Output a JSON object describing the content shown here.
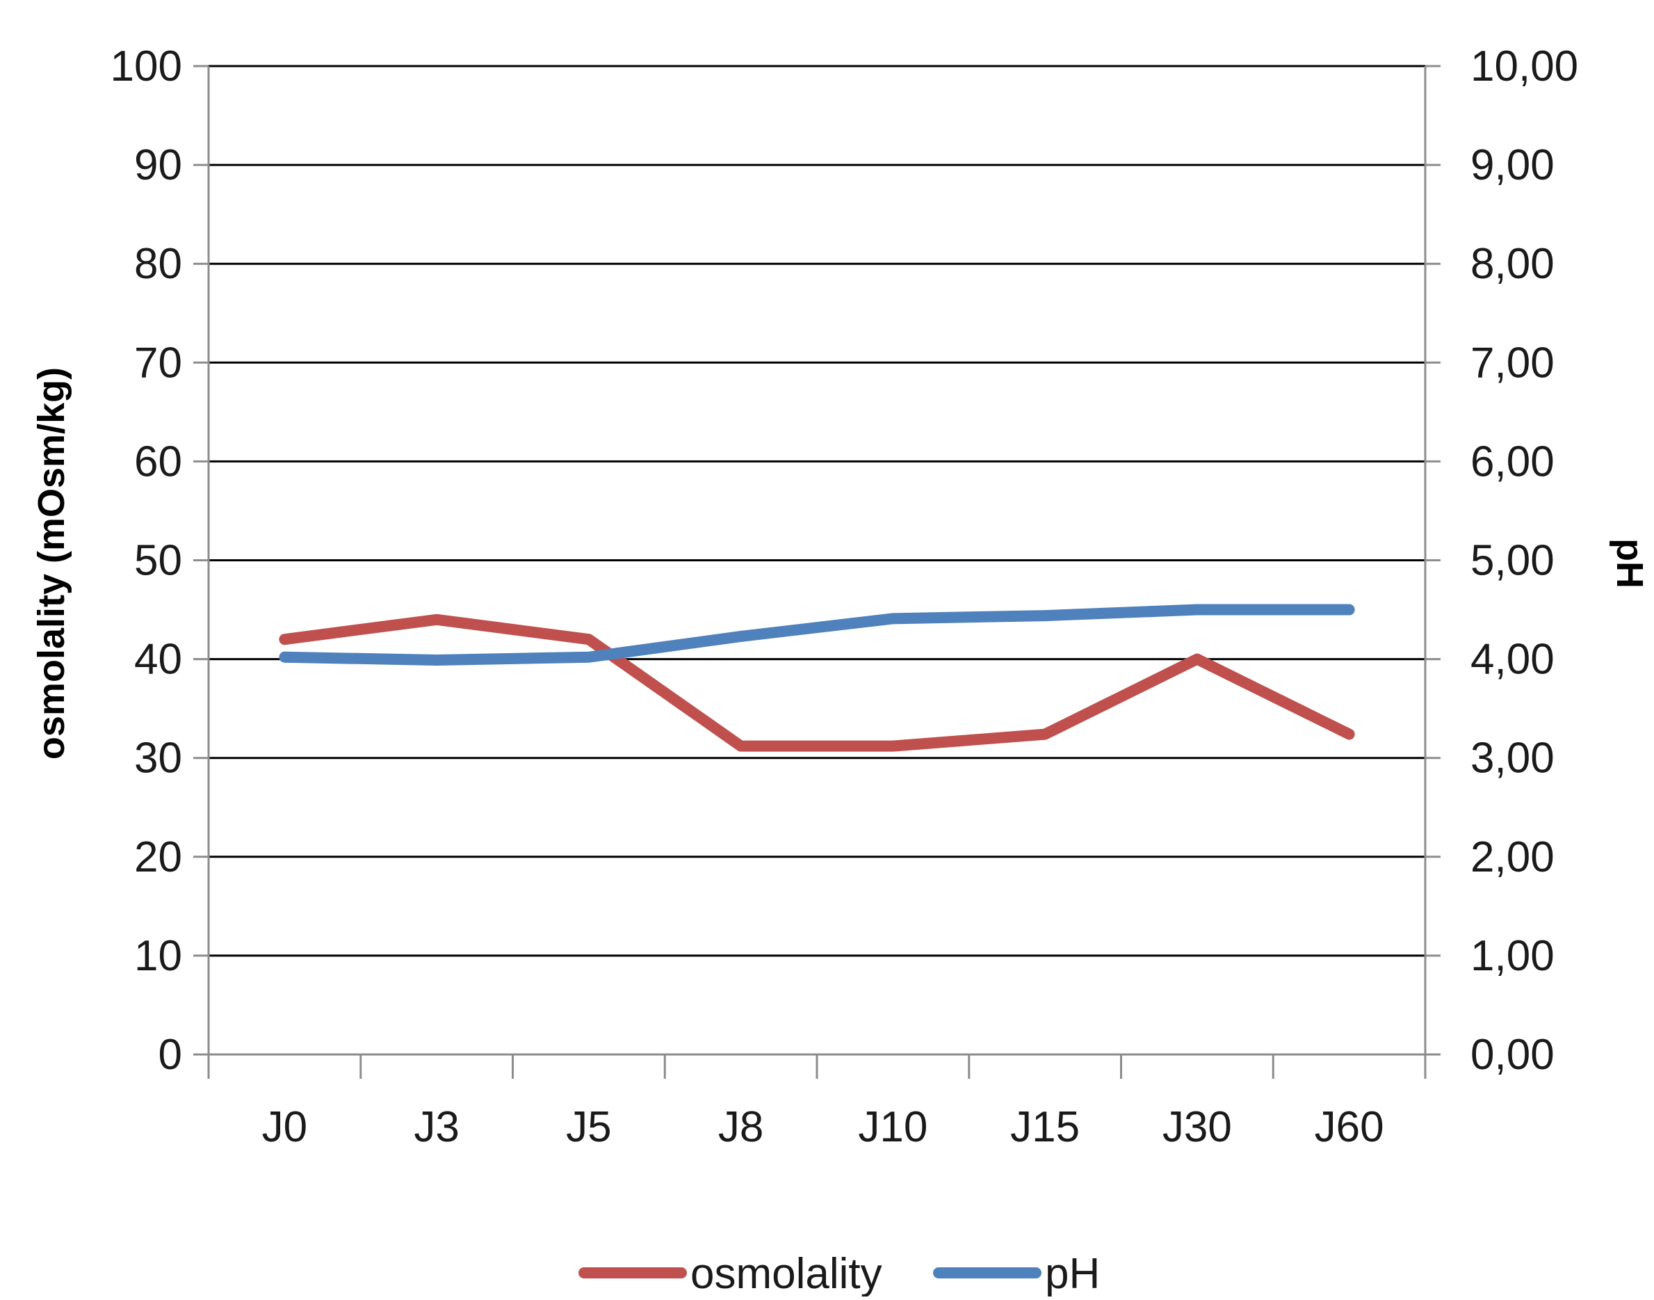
{
  "chart_data": {
    "type": "line",
    "categories": [
      "J0",
      "J3",
      "J5",
      "J8",
      "J10",
      "J15",
      "J30",
      "J60"
    ],
    "series": [
      {
        "name": "osmolality",
        "axis": "left",
        "color": "#C0504D",
        "values": [
          42,
          44,
          42,
          31.2,
          31.2,
          32.4,
          40,
          32.4
        ]
      },
      {
        "name": "pH",
        "axis": "right",
        "color": "#4F81BD",
        "values": [
          4.02,
          3.99,
          4.02,
          4.23,
          4.41,
          4.44,
          4.5,
          4.5
        ]
      }
    ],
    "ylabel": "osmolality (mOsm/kg)",
    "ylabel_right": "pH",
    "xlabel": "",
    "ylim": [
      0,
      100
    ],
    "ylim_right": [
      0,
      10
    ],
    "yticks": [
      "0",
      "10",
      "20",
      "30",
      "40",
      "50",
      "60",
      "70",
      "80",
      "90",
      "100"
    ],
    "yticks_right": [
      "0,00",
      "1,00",
      "2,00",
      "3,00",
      "4,00",
      "5,00",
      "6,00",
      "7,00",
      "8,00",
      "9,00",
      "10,00"
    ],
    "grid": true,
    "legend_position": "bottom"
  }
}
